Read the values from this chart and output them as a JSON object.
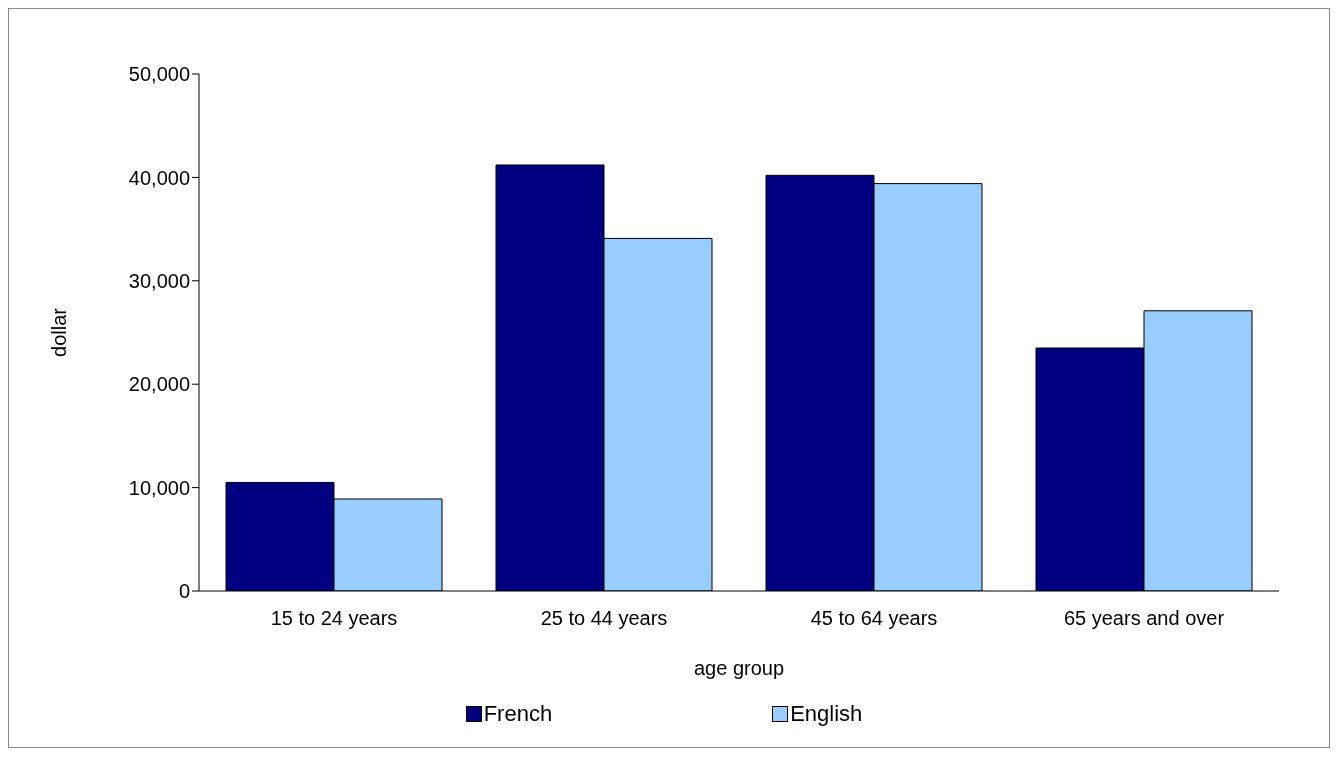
{
  "chart_data": {
    "type": "bar",
    "xlabel": "age group",
    "ylabel": "dollar",
    "categories": [
      "15 to 24 years",
      "25 to 44 years",
      "45 to 64 years",
      "65 years and over"
    ],
    "series": [
      {
        "name": "French",
        "color": "#000080",
        "values": [
          10500,
          41200,
          40200,
          23500
        ]
      },
      {
        "name": "English",
        "color": "#99ccff",
        "values": [
          8900,
          34100,
          39400,
          27100
        ]
      }
    ],
    "ylim": [
      0,
      50000
    ],
    "yticks": [
      {
        "value": 0,
        "label": "0"
      },
      {
        "value": 10000,
        "label": "10,000"
      },
      {
        "value": 20000,
        "label": "20,000"
      },
      {
        "value": 30000,
        "label": "30,000"
      },
      {
        "value": 40000,
        "label": "40,000"
      },
      {
        "value": 50000,
        "label": "50,000"
      }
    ],
    "grid": false,
    "legend": "bottom"
  }
}
